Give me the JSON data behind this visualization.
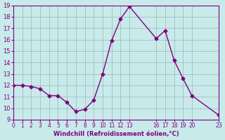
{
  "x": [
    0,
    1,
    2,
    3,
    4,
    5,
    6,
    7,
    8,
    9,
    10,
    11,
    12,
    13,
    16,
    17,
    18,
    19,
    20,
    23
  ],
  "y": [
    12.0,
    12.0,
    11.9,
    11.7,
    11.1,
    11.1,
    10.5,
    9.7,
    9.9,
    10.7,
    13.0,
    15.9,
    17.8,
    18.9,
    16.1,
    16.8,
    14.2,
    12.6,
    11.1,
    9.4
  ],
  "line_color": "#800080",
  "marker_color": "#800080",
  "bg_color": "#c8eaea",
  "grid_color": "#9ab8b8",
  "axis_label_color": "#800080",
  "tick_color": "#800080",
  "xlabel": "Windchill (Refroidissement éolien,°C)",
  "xlim": [
    0,
    23
  ],
  "ylim": [
    9,
    19
  ],
  "yticks": [
    9,
    10,
    11,
    12,
    13,
    14,
    15,
    16,
    17,
    18,
    19
  ],
  "xtick_positions": [
    0,
    1,
    2,
    3,
    4,
    5,
    6,
    7,
    8,
    9,
    10,
    11,
    12,
    13,
    16,
    17,
    18,
    19,
    20,
    23
  ],
  "xtick_labels": [
    "0",
    "1",
    "2",
    "3",
    "4",
    "5",
    "6",
    "7",
    "8",
    "9",
    "10",
    "11",
    "12",
    "13",
    "16",
    "17",
    "18",
    "19",
    "20",
    "23"
  ]
}
